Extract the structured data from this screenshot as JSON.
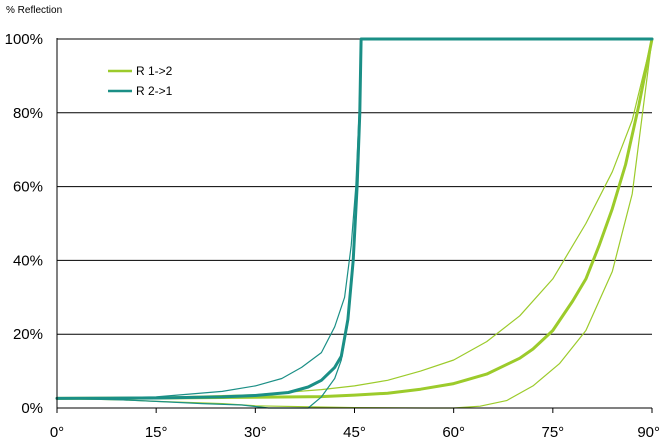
{
  "chart_data": {
    "type": "line",
    "title": "",
    "xlabel": "",
    "ylabel": "% Reflection",
    "xlim": [
      0,
      90
    ],
    "ylim": [
      0,
      100
    ],
    "x_ticks": [
      {
        "value": 0,
        "label": "0°"
      },
      {
        "value": 15,
        "label": "15°"
      },
      {
        "value": 30,
        "label": "30°"
      },
      {
        "value": 45,
        "label": "45°"
      },
      {
        "value": 60,
        "label": "60°"
      },
      {
        "value": 75,
        "label": "75°"
      },
      {
        "value": 90,
        "label": "90°"
      }
    ],
    "y_ticks": [
      {
        "value": 0,
        "label": "0%"
      },
      {
        "value": 20,
        "label": "20%"
      },
      {
        "value": 40,
        "label": "40%"
      },
      {
        "value": 60,
        "label": "60%"
      },
      {
        "value": 80,
        "label": "80%"
      },
      {
        "value": 100,
        "label": "100%"
      }
    ],
    "grid": "horizontal",
    "legend_position": "top-left",
    "legend": [
      {
        "label": "R 1->2",
        "color": "#9ccb2b"
      },
      {
        "label": "R 2->1",
        "color": "#1b8f86"
      }
    ],
    "series": [
      {
        "name": "R 1->2",
        "color": "#9ccb2b",
        "width": 3,
        "points": [
          [
            0,
            2.6
          ],
          [
            15,
            2.7
          ],
          [
            30,
            2.9
          ],
          [
            40,
            3.1
          ],
          [
            45,
            3.5
          ],
          [
            50,
            4
          ],
          [
            55,
            5.1
          ],
          [
            60,
            6.6
          ],
          [
            65,
            9.2
          ],
          [
            70,
            13.5
          ],
          [
            72,
            16
          ],
          [
            75,
            21
          ],
          [
            78,
            29
          ],
          [
            80,
            35
          ],
          [
            82,
            44
          ],
          [
            84,
            54
          ],
          [
            86,
            66
          ],
          [
            88,
            82
          ],
          [
            90,
            100
          ]
        ]
      },
      {
        "name": "R 1->2",
        "color": "#9ccb2b",
        "width": 1.2,
        "points": [
          [
            0,
            2.6
          ],
          [
            15,
            2.9
          ],
          [
            30,
            3.6
          ],
          [
            40,
            5
          ],
          [
            45,
            6
          ],
          [
            50,
            7.5
          ],
          [
            55,
            10
          ],
          [
            60,
            13
          ],
          [
            65,
            18
          ],
          [
            70,
            25
          ],
          [
            75,
            35
          ],
          [
            80,
            50
          ],
          [
            84,
            64
          ],
          [
            87,
            78
          ],
          [
            90,
            100
          ]
        ]
      },
      {
        "name": "R 1->2",
        "color": "#9ccb2b",
        "width": 1.2,
        "points": [
          [
            0,
            2.6
          ],
          [
            10,
            2.2
          ],
          [
            15,
            1.8
          ],
          [
            25,
            1.2
          ],
          [
            30,
            0.6
          ],
          [
            45,
            0.1
          ],
          [
            56,
            0
          ],
          [
            60,
            0
          ],
          [
            64,
            0.5
          ],
          [
            68,
            2
          ],
          [
            72,
            6
          ],
          [
            76,
            12
          ],
          [
            80,
            21
          ],
          [
            84,
            37
          ],
          [
            87,
            58
          ],
          [
            90,
            100
          ]
        ]
      },
      {
        "name": "R 2->1",
        "color": "#1b8f86",
        "width": 3,
        "points": [
          [
            0,
            2.6
          ],
          [
            15,
            2.7
          ],
          [
            25,
            3
          ],
          [
            30,
            3.4
          ],
          [
            35,
            4.2
          ],
          [
            38,
            5.7
          ],
          [
            40,
            7.5
          ],
          [
            42,
            11
          ],
          [
            43,
            14
          ],
          [
            44,
            24
          ],
          [
            44.8,
            40
          ],
          [
            45.4,
            60
          ],
          [
            45.8,
            80
          ],
          [
            46,
            100
          ],
          [
            90,
            100
          ]
        ]
      },
      {
        "name": "R 2->1",
        "color": "#1b8f86",
        "width": 1.2,
        "points": [
          [
            0,
            2.6
          ],
          [
            15,
            3
          ],
          [
            25,
            4.5
          ],
          [
            30,
            6
          ],
          [
            34,
            8
          ],
          [
            37,
            11
          ],
          [
            40,
            15
          ],
          [
            42,
            22
          ],
          [
            43.5,
            30
          ],
          [
            44.5,
            44
          ],
          [
            45.2,
            60
          ],
          [
            45.7,
            80
          ],
          [
            46,
            100
          ],
          [
            90,
            100
          ]
        ]
      },
      {
        "name": "R 2->1",
        "color": "#1b8f86",
        "width": 1.2,
        "points": [
          [
            0,
            2.6
          ],
          [
            10,
            2.2
          ],
          [
            15,
            1.8
          ],
          [
            22,
            1.2
          ],
          [
            28,
            0.8
          ],
          [
            32,
            0
          ],
          [
            38,
            0
          ],
          [
            40,
            3
          ],
          [
            42,
            8
          ],
          [
            43,
            13
          ],
          [
            44,
            23
          ],
          [
            44.8,
            40
          ],
          [
            45.4,
            60
          ],
          [
            45.8,
            80
          ],
          [
            46,
            100
          ]
        ]
      }
    ]
  }
}
